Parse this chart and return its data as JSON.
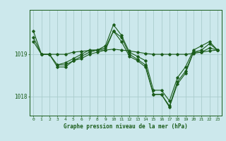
{
  "title": "Graphe pression niveau de la mer (hPa)",
  "bg_color": "#cce8ec",
  "grid_color": "#aacccc",
  "line_color": "#1a5c1a",
  "xlim": [
    -0.5,
    23.5
  ],
  "ylim": [
    1017.55,
    1020.05
  ],
  "yticks": [
    1018,
    1019
  ],
  "xticks": [
    0,
    1,
    2,
    3,
    4,
    5,
    6,
    7,
    8,
    9,
    10,
    11,
    12,
    13,
    14,
    15,
    16,
    17,
    18,
    19,
    20,
    21,
    22,
    23
  ],
  "line1_x": [
    0,
    1,
    2,
    3,
    4,
    5,
    6,
    7,
    8,
    9,
    10,
    11,
    12,
    13,
    14,
    15,
    16,
    17,
    18,
    19,
    20,
    21,
    22,
    23
  ],
  "line1_y": [
    1019.55,
    1019.0,
    1019.0,
    1018.7,
    1018.7,
    1018.85,
    1018.95,
    1019.05,
    1019.1,
    1019.15,
    1019.55,
    1019.3,
    1018.95,
    1018.85,
    1018.7,
    1018.05,
    1018.05,
    1017.75,
    1018.3,
    1018.55,
    1019.05,
    1019.05,
    1019.15,
    1019.1
  ],
  "line2_x": [
    0,
    1,
    2,
    3,
    4,
    5,
    6,
    7,
    8,
    9,
    10,
    11,
    12,
    13,
    14,
    15,
    16,
    17,
    18,
    19,
    20,
    21,
    22,
    23
  ],
  "line2_y": [
    1019.3,
    1019.0,
    1019.0,
    1019.0,
    1019.0,
    1019.05,
    1019.07,
    1019.09,
    1019.1,
    1019.1,
    1019.12,
    1019.1,
    1019.08,
    1019.05,
    1019.02,
    1019.0,
    1019.0,
    1019.0,
    1019.0,
    1019.0,
    1019.02,
    1019.05,
    1019.08,
    1019.1
  ],
  "line3_x": [
    0,
    1,
    2,
    3,
    4,
    5,
    6,
    7,
    8,
    9,
    10,
    11,
    12,
    13,
    14,
    15,
    16,
    17,
    18,
    19,
    20,
    21,
    22,
    23
  ],
  "line3_y": [
    1019.4,
    1019.0,
    1019.0,
    1018.75,
    1018.8,
    1018.9,
    1019.0,
    1019.1,
    1019.1,
    1019.2,
    1019.7,
    1019.45,
    1019.05,
    1018.95,
    1018.85,
    1018.15,
    1018.15,
    1017.9,
    1018.45,
    1018.7,
    1019.1,
    1019.2,
    1019.3,
    1019.1
  ],
  "line4_x": [
    3,
    4,
    5,
    6,
    7,
    8,
    9,
    10,
    11,
    12,
    13,
    14,
    15,
    16,
    17,
    18,
    19,
    20,
    21,
    22,
    23
  ],
  "line4_y": [
    1018.75,
    1018.75,
    1018.85,
    1018.9,
    1019.0,
    1019.05,
    1019.1,
    1019.55,
    1019.4,
    1019.0,
    1018.88,
    1018.75,
    1018.05,
    1018.05,
    1017.78,
    1018.35,
    1018.6,
    1019.05,
    1019.1,
    1019.25,
    1019.1
  ],
  "figsize": [
    3.2,
    2.0
  ],
  "dpi": 100
}
